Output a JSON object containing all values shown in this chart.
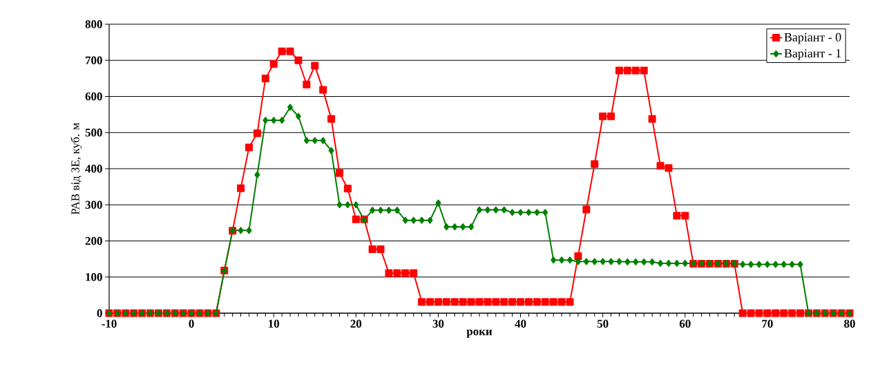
{
  "chart_data": {
    "type": "line",
    "xlabel": "роки",
    "ylabel": "РАВ від ЗЕ, куб. м",
    "x": [
      -10,
      -9,
      -8,
      -7,
      -6,
      -5,
      -4,
      -3,
      -2,
      -1,
      0,
      1,
      2,
      3,
      4,
      5,
      6,
      7,
      8,
      9,
      10,
      11,
      12,
      13,
      14,
      15,
      16,
      17,
      18,
      19,
      20,
      21,
      22,
      23,
      24,
      25,
      26,
      27,
      28,
      29,
      30,
      31,
      32,
      33,
      34,
      35,
      36,
      37,
      38,
      39,
      40,
      41,
      42,
      43,
      44,
      45,
      46,
      47,
      48,
      49,
      50,
      51,
      52,
      53,
      54,
      55,
      56,
      57,
      58,
      59,
      60,
      61,
      62,
      63,
      64,
      65,
      66,
      67,
      68,
      69,
      70,
      71,
      72,
      73,
      74,
      75,
      76,
      77,
      78,
      79,
      80
    ],
    "series": [
      {
        "name": "Варіант - 0",
        "color": "#ff0000",
        "marker": "square",
        "values": [
          0,
          0,
          0,
          0,
          0,
          0,
          0,
          0,
          0,
          0,
          0,
          0,
          0,
          0,
          118,
          228,
          346,
          459,
          498,
          650,
          690,
          725,
          725,
          700,
          633,
          685,
          618,
          538,
          388,
          345,
          260,
          260,
          177,
          177,
          111,
          111,
          111,
          111,
          31,
          31,
          31,
          31,
          31,
          31,
          31,
          31,
          31,
          31,
          31,
          31,
          31,
          31,
          31,
          31,
          31,
          31,
          31,
          158,
          287,
          413,
          545,
          545,
          672,
          672,
          672,
          672,
          538,
          408,
          402,
          270,
          270,
          137,
          137,
          137,
          137,
          137,
          137,
          0,
          0,
          0,
          0,
          0,
          0,
          0,
          0,
          0,
          0,
          0,
          0,
          0,
          0
        ]
      },
      {
        "name": "Варіант - 1",
        "color": "#007f00",
        "marker": "diamond",
        "values": [
          0,
          0,
          0,
          0,
          0,
          0,
          0,
          0,
          0,
          0,
          0,
          0,
          0,
          0,
          117,
          229,
          229,
          229,
          383,
          534,
          534,
          534,
          570,
          545,
          478,
          478,
          478,
          450,
          300,
          300,
          300,
          258,
          285,
          285,
          285,
          285,
          257,
          257,
          257,
          257,
          305,
          239,
          239,
          239,
          239,
          286,
          286,
          286,
          286,
          279,
          279,
          279,
          279,
          279,
          147,
          147,
          147,
          143,
          143,
          143,
          143,
          143,
          143,
          142,
          142,
          142,
          142,
          138,
          138,
          138,
          138,
          138,
          138,
          138,
          138,
          138,
          138,
          135,
          135,
          135,
          135,
          135,
          135,
          135,
          135,
          0,
          0,
          0,
          0,
          0,
          0
        ]
      }
    ],
    "xlim": [
      -10,
      80
    ],
    "xticks": [
      -10,
      0,
      10,
      20,
      30,
      40,
      50,
      60,
      70,
      80
    ],
    "ylim": [
      0,
      800
    ],
    "yticks": [
      0,
      100,
      200,
      300,
      400,
      500,
      600,
      700,
      800
    ],
    "grid": "y",
    "legend": "top right",
    "line_style": "solid"
  }
}
